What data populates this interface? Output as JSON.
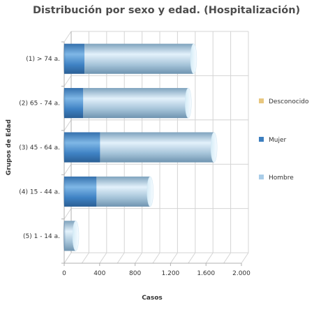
{
  "chart_data": {
    "type": "bar",
    "orientation": "horizontal",
    "stacked": true,
    "title": "Distribución por sexo y edad. (Hospitalización)",
    "xlabel": "Casos",
    "ylabel": "Grupos de Edad",
    "xlim": [
      0,
      2000
    ],
    "x_ticks": [
      0,
      400,
      800,
      1200,
      1600,
      2000
    ],
    "x_tick_labels": [
      "0",
      "400",
      "800",
      "1.200",
      "1.600",
      "2.000"
    ],
    "categories": [
      "(1) > 74 a.",
      "(2) 65 - 74 a.",
      "(3) 45 - 64 a.",
      "(4) 15 - 44 a.",
      "(5) 1 - 14 a."
    ],
    "series": [
      {
        "name": "Desconocido",
        "color": "#e8c77f",
        "values": [
          0,
          0,
          0,
          0,
          0
        ]
      },
      {
        "name": "Mujer",
        "color": "#3d7fbf",
        "values": [
          230,
          215,
          405,
          365,
          0
        ]
      },
      {
        "name": "Hombre",
        "color": "#a9cde8",
        "values": [
          1230,
          1185,
          1285,
          605,
          130
        ]
      }
    ],
    "legend_position": "right",
    "grid": true
  }
}
